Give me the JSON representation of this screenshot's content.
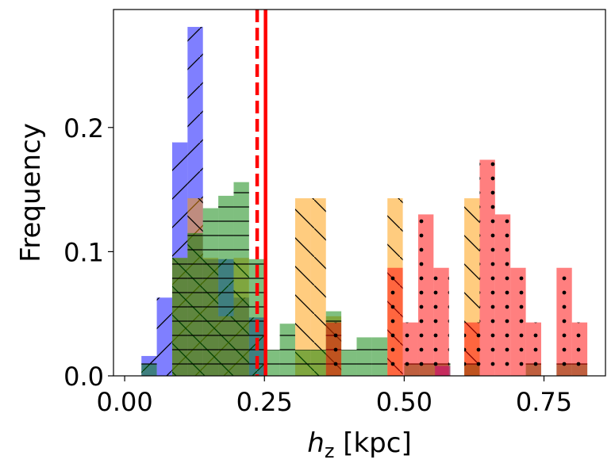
{
  "chart_data": {
    "type": "histogram",
    "title": "",
    "xlabel_var": "h",
    "xlabel_sub": "z",
    "xlabel_unit": " [kpc]",
    "ylabel": "Frequency",
    "xlim": [
      -0.02,
      0.86
    ],
    "ylim": [
      0.0,
      0.295
    ],
    "xticks": [
      {
        "value": 0.0,
        "label": "0.00"
      },
      {
        "value": 0.25,
        "label": "0.25"
      },
      {
        "value": 0.5,
        "label": "0.50"
      },
      {
        "value": 0.75,
        "label": "0.75"
      }
    ],
    "yticks": [
      {
        "value": 0.0,
        "label": "0.0"
      },
      {
        "value": 0.1,
        "label": "0.1"
      },
      {
        "value": 0.2,
        "label": "0.2"
      }
    ],
    "bin_width": 0.0275,
    "series": [
      {
        "name": "blue",
        "color": "#0000ff",
        "alpha": 0.5,
        "hatch": "slash",
        "bins": [
          {
            "x": 0.03,
            "y": 0.016
          },
          {
            "x": 0.0575,
            "y": 0.063
          },
          {
            "x": 0.085,
            "y": 0.188
          },
          {
            "x": 0.1125,
            "y": 0.281
          },
          {
            "x": 0.14,
            "y": 0.094
          },
          {
            "x": 0.1675,
            "y": 0.094
          },
          {
            "x": 0.195,
            "y": 0.063
          },
          {
            "x": 0.2225,
            "y": 0.047
          }
        ]
      },
      {
        "name": "orange",
        "color": "#ff9900",
        "alpha": 0.5,
        "hatch": "backslash",
        "bins": [
          {
            "x": 0.085,
            "y": 0.095
          },
          {
            "x": 0.1125,
            "y": 0.143
          },
          {
            "x": 0.14,
            "y": 0.095
          },
          {
            "x": 0.1675,
            "y": 0.048
          },
          {
            "x": 0.195,
            "y": 0.095
          },
          {
            "x": 0.305,
            "y": 0.143
          },
          {
            "x": 0.3325,
            "y": 0.143
          },
          {
            "x": 0.36,
            "y": 0.048
          },
          {
            "x": 0.47,
            "y": 0.143
          },
          {
            "x": 0.6075,
            "y": 0.143
          }
        ]
      },
      {
        "name": "green",
        "color": "#008000",
        "alpha": 0.5,
        "hatch": "horizontal",
        "bins": [
          {
            "x": 0.03,
            "y": 0.01
          },
          {
            "x": 0.085,
            "y": 0.095
          },
          {
            "x": 0.1125,
            "y": 0.115
          },
          {
            "x": 0.14,
            "y": 0.135
          },
          {
            "x": 0.1675,
            "y": 0.145
          },
          {
            "x": 0.195,
            "y": 0.156
          },
          {
            "x": 0.2225,
            "y": 0.094
          },
          {
            "x": 0.25,
            "y": 0.021
          },
          {
            "x": 0.2775,
            "y": 0.042
          },
          {
            "x": 0.305,
            "y": 0.021
          },
          {
            "x": 0.3325,
            "y": 0.021
          },
          {
            "x": 0.36,
            "y": 0.052
          },
          {
            "x": 0.3875,
            "y": 0.021
          },
          {
            "x": 0.415,
            "y": 0.031
          },
          {
            "x": 0.4425,
            "y": 0.031
          },
          {
            "x": 0.5,
            "y": 0.01
          },
          {
            "x": 0.5275,
            "y": 0.01
          },
          {
            "x": 0.555,
            "y": 0.01
          },
          {
            "x": 0.6075,
            "y": 0.01
          },
          {
            "x": 0.7175,
            "y": 0.01
          },
          {
            "x": 0.7725,
            "y": 0.01
          },
          {
            "x": 0.8,
            "y": 0.01
          }
        ]
      },
      {
        "name": "red",
        "color": "#ff0000",
        "alpha": 0.5,
        "hatch": "dots",
        "bins": [
          {
            "x": 0.36,
            "y": 0.043
          },
          {
            "x": 0.47,
            "y": 0.087
          },
          {
            "x": 0.4975,
            "y": 0.043
          },
          {
            "x": 0.525,
            "y": 0.13
          },
          {
            "x": 0.5525,
            "y": 0.087
          },
          {
            "x": 0.6075,
            "y": 0.043
          },
          {
            "x": 0.635,
            "y": 0.174
          },
          {
            "x": 0.6625,
            "y": 0.13
          },
          {
            "x": 0.69,
            "y": 0.087
          },
          {
            "x": 0.7175,
            "y": 0.043
          },
          {
            "x": 0.7725,
            "y": 0.087
          },
          {
            "x": 0.8,
            "y": 0.043
          }
        ]
      },
      {
        "name": "magenta",
        "color": "#cc0077",
        "alpha": 0.55,
        "hatch": "none",
        "bins": [
          {
            "x": 0.555,
            "y": 0.008
          }
        ]
      }
    ],
    "vlines": [
      {
        "x": 0.237,
        "color": "#ff0000",
        "style": "dashed"
      },
      {
        "x": 0.252,
        "color": "#ff0000",
        "style": "solid"
      }
    ]
  }
}
